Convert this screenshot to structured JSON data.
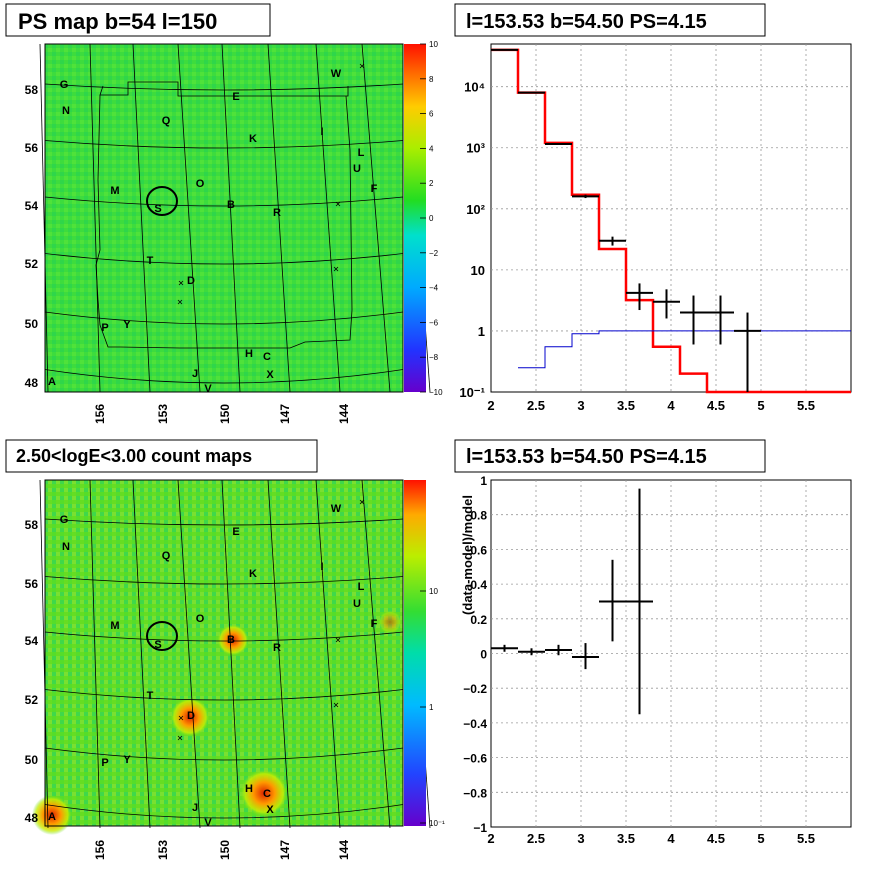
{
  "panels": {
    "tl_title": "PS map b=54 l=150",
    "tr_title": "l=153.53 b=54.50 PS=4.15",
    "bl_title": "2.50<logE<3.00 count maps",
    "br_title": "l=153.53 b=54.50 PS=4.15"
  },
  "colors": {
    "map_fill": "#33dd33",
    "model_red": "#ff0000",
    "model_blue": "#0000cc",
    "data_black": "#000000"
  },
  "map_top": {
    "lat_labels": [
      "58",
      "56",
      "54",
      "52",
      "50",
      "48"
    ],
    "lon_labels": [
      "156",
      "153",
      "150",
      "147",
      "144"
    ],
    "source_labels": [
      "G",
      "N",
      "Q",
      "E",
      "W",
      "K",
      "I",
      "L",
      "U",
      "F",
      "M",
      "O",
      "B",
      "R",
      "S",
      "T",
      "D",
      "P",
      "Y",
      "H",
      "C",
      "J",
      "X",
      "V",
      "A"
    ],
    "colorbar_labels": [
      "10",
      "8",
      "6",
      "4",
      "2",
      "0",
      "−2",
      "−4",
      "−6",
      "−8",
      "−10"
    ]
  },
  "map_bottom": {
    "lat_labels": [
      "58",
      "56",
      "54",
      "52",
      "50",
      "48"
    ],
    "lon_labels": [
      "156",
      "153",
      "150",
      "147",
      "144"
    ],
    "source_labels": [
      "G",
      "N",
      "Q",
      "E",
      "W",
      "K",
      "I",
      "L",
      "U",
      "F",
      "M",
      "O",
      "B",
      "R",
      "S",
      "T",
      "D",
      "P",
      "Y",
      "H",
      "C",
      "J",
      "X",
      "V",
      "A"
    ],
    "colorbar_labels": [
      "10",
      "1",
      "10⁻¹"
    ]
  },
  "chart_data": [
    {
      "type": "line",
      "title": "l=153.53 b=54.50 PS=4.15",
      "xlim": [
        2,
        6
      ],
      "ylim": [
        0.1,
        50000
      ],
      "yscale": "log",
      "grid": true,
      "x_ticks": [
        "2",
        "2.5",
        "3",
        "3.5",
        "4",
        "4.5",
        "5",
        "5.5"
      ],
      "y_ticks": [
        "10⁻¹",
        "1",
        "10",
        "10²",
        "10³",
        "10⁴"
      ],
      "series": [
        {
          "kind": "step",
          "color": "#ff0000",
          "edges": [
            2,
            2.3,
            2.6,
            2.9,
            3.2,
            3.5,
            3.8,
            4.1,
            4.4,
            6
          ],
          "values": [
            40000,
            8000,
            1200,
            170,
            22,
            3.2,
            0.55,
            0.2,
            0.1
          ]
        },
        {
          "kind": "step",
          "color": "#0000cc",
          "edges": [
            2.3,
            2.6,
            2.9,
            3.2,
            3.5,
            6
          ],
          "values": [
            0.25,
            0.55,
            0.9,
            1.0,
            1.0
          ]
        },
        {
          "kind": "errorbar",
          "color": "#000000",
          "x": [
            2.15,
            2.45,
            2.75,
            3.05,
            3.35,
            3.65,
            3.95,
            4.25,
            4.55,
            4.85
          ],
          "xerr": [
            0.15,
            0.15,
            0.15,
            0.15,
            0.15,
            0.15,
            0.15,
            0.15,
            0.15,
            0.15
          ],
          "y": [
            40000,
            8000,
            1150,
            160,
            30,
            4.2,
            3.0,
            2.0,
            2.0,
            1.0
          ],
          "ylo": [
            39800,
            7900,
            1120,
            150,
            25,
            2.2,
            1.6,
            0.6,
            0.6,
            0.1
          ],
          "yhi": [
            40200,
            8100,
            1180,
            170,
            35,
            6.0,
            4.8,
            3.8,
            3.8,
            2.0
          ]
        }
      ]
    },
    {
      "type": "scatter",
      "title": "l=153.53 b=54.50 PS=4.15",
      "ylabel": "(data-model)/model",
      "xlim": [
        2,
        6
      ],
      "ylim": [
        -1,
        1
      ],
      "grid": true,
      "x_ticks": [
        "2",
        "2.5",
        "3",
        "3.5",
        "4",
        "4.5",
        "5",
        "5.5"
      ],
      "y_ticks": [
        "−1",
        "−0.8",
        "−0.6",
        "−0.4",
        "−0.2",
        "0",
        "0.2",
        "0.4",
        "0.6",
        "0.8",
        "1"
      ],
      "points": {
        "x": [
          2.15,
          2.45,
          2.75,
          3.05,
          3.35,
          3.65
        ],
        "xerr": [
          0.15,
          0.15,
          0.15,
          0.15,
          0.15,
          0.15
        ],
        "y": [
          0.03,
          0.01,
          0.02,
          -0.02,
          0.3,
          0.3
        ],
        "ylo": [
          0.01,
          -0.01,
          -0.01,
          -0.09,
          0.07,
          -0.35
        ],
        "yhi": [
          0.05,
          0.03,
          0.05,
          0.06,
          0.54,
          0.95
        ]
      }
    }
  ]
}
